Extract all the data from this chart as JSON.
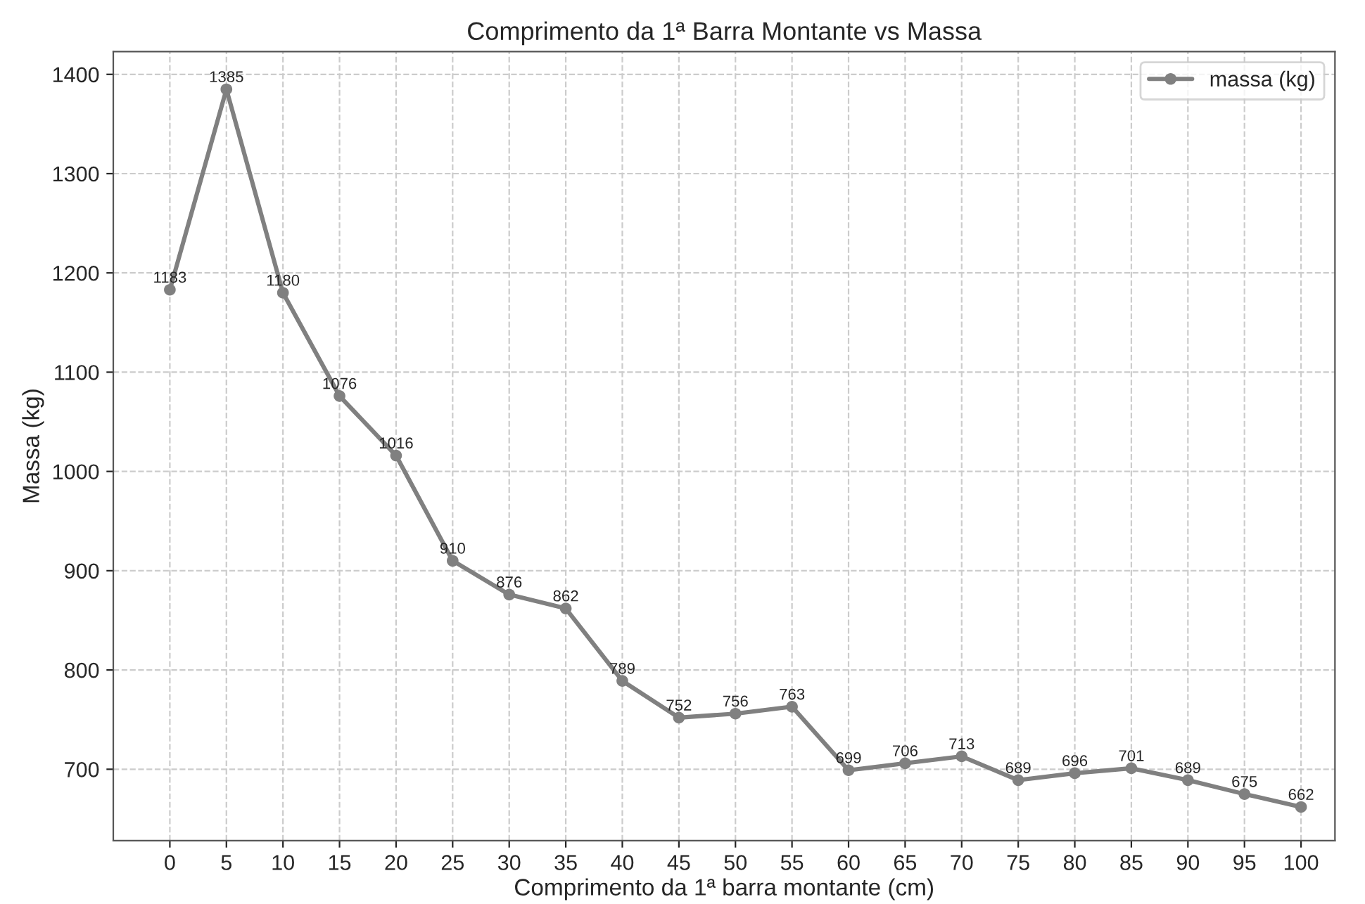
{
  "chart_data": {
    "type": "line",
    "title": "Comprimento da 1ª Barra Montante vs Massa",
    "xlabel": "Comprimento da 1ª barra montante (cm)",
    "ylabel": "Massa (kg)",
    "x": [
      0,
      5,
      10,
      15,
      20,
      25,
      30,
      35,
      40,
      45,
      50,
      55,
      60,
      65,
      70,
      75,
      80,
      85,
      90,
      95,
      100
    ],
    "series": [
      {
        "name": "massa (kg)",
        "color": "#808080",
        "values": [
          1183,
          1385,
          1180,
          1076,
          1016,
          910,
          876,
          862,
          789,
          752,
          756,
          763,
          699,
          706,
          713,
          689,
          696,
          701,
          689,
          675,
          662
        ]
      }
    ],
    "xlim": [
      -5,
      103
    ],
    "xticks": [
      0,
      5,
      10,
      15,
      20,
      25,
      30,
      35,
      40,
      45,
      50,
      55,
      60,
      65,
      70,
      75,
      80,
      85,
      90,
      95,
      100
    ],
    "ylim": [
      628,
      1423
    ],
    "yticks": [
      700,
      800,
      900,
      1000,
      1100,
      1200,
      1300,
      1400
    ],
    "data_labels": true,
    "grid": true,
    "legend": "top right",
    "marker": "circle",
    "line_style": "solid"
  }
}
